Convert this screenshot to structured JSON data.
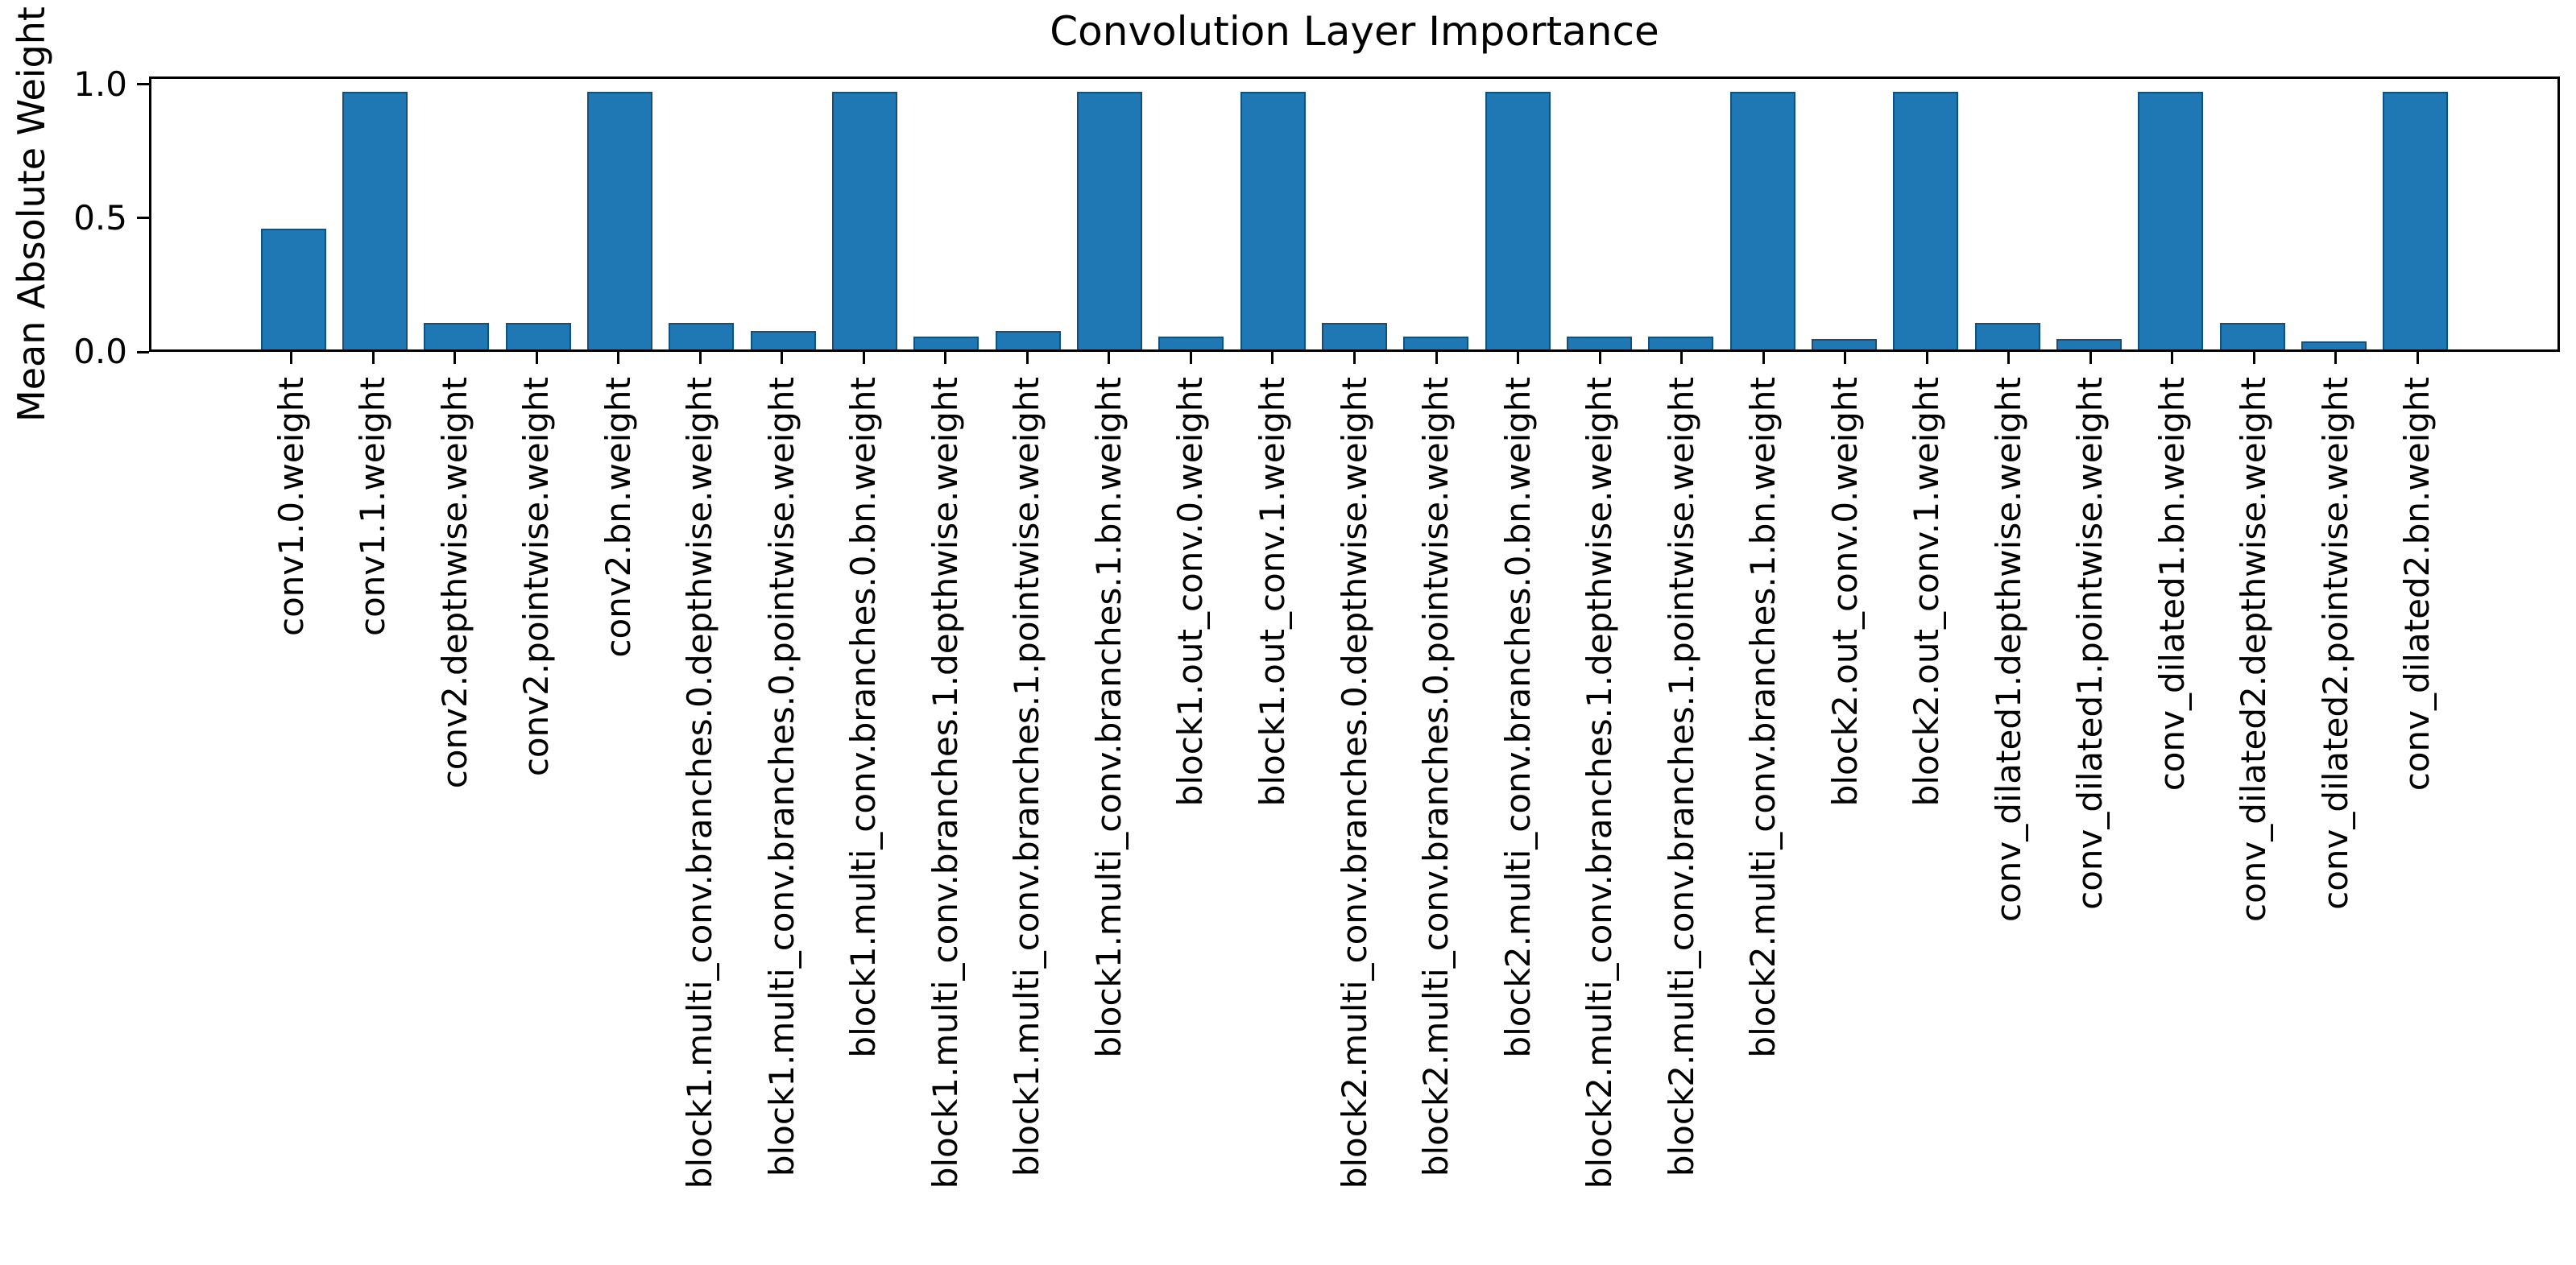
{
  "chart_data": {
    "type": "bar",
    "title": "Convolution Layer Importance",
    "ylabel": "Mean Absolute Weight",
    "categories": [
      "conv1.0.weight",
      "conv1.1.weight",
      "conv2.depthwise.weight",
      "conv2.pointwise.weight",
      "conv2.bn.weight",
      "block1.multi_conv.branches.0.depthwise.weight",
      "block1.multi_conv.branches.0.pointwise.weight",
      "block1.multi_conv.branches.0.bn.weight",
      "block1.multi_conv.branches.1.depthwise.weight",
      "block1.multi_conv.branches.1.pointwise.weight",
      "block1.multi_conv.branches.1.bn.weight",
      "block1.out_conv.0.weight",
      "block1.out_conv.1.weight",
      "block2.multi_conv.branches.0.depthwise.weight",
      "block2.multi_conv.branches.0.pointwise.weight",
      "block2.multi_conv.branches.0.bn.weight",
      "block2.multi_conv.branches.1.depthwise.weight",
      "block2.multi_conv.branches.1.pointwise.weight",
      "block2.multi_conv.branches.1.bn.weight",
      "block2.out_conv.0.weight",
      "block2.out_conv.1.weight",
      "conv_dilated1.depthwise.weight",
      "conv_dilated1.pointwise.weight",
      "conv_dilated1.bn.weight",
      "conv_dilated2.depthwise.weight",
      "conv_dilated2.pointwise.weight",
      "conv_dilated2.bn.weight"
    ],
    "values": [
      0.46,
      0.98,
      0.1,
      0.1,
      0.98,
      0.1,
      0.07,
      0.98,
      0.05,
      0.07,
      0.98,
      0.05,
      0.98,
      0.1,
      0.05,
      0.98,
      0.05,
      0.05,
      0.98,
      0.04,
      0.98,
      0.1,
      0.04,
      0.98,
      0.1,
      0.03,
      0.98
    ],
    "ylim": [
      0,
      1.03
    ],
    "yticks": [
      {
        "label": "0.0",
        "value": 0.0
      },
      {
        "label": "0.5",
        "value": 0.5
      },
      {
        "label": "1.0",
        "value": 1.0
      }
    ],
    "grid": false,
    "legend": null,
    "bar_color": "#1f77b4",
    "bar_edge_color": "#11507f",
    "axis_color": "#000000"
  }
}
